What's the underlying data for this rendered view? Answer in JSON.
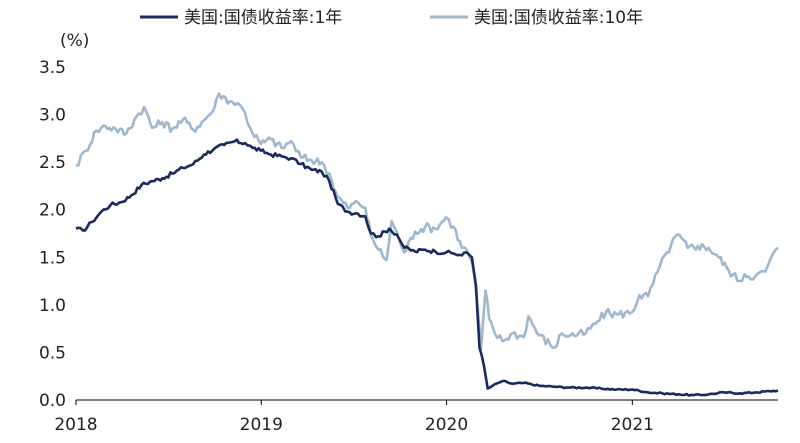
{
  "chart_data": {
    "type": "line",
    "unit_label": "(%)",
    "ylim": [
      0,
      3.5
    ],
    "yticks": [
      "3.5",
      "3.0",
      "2.5",
      "2.0",
      "1.5",
      "1.0",
      "0.5",
      "0.0"
    ],
    "xlim": [
      "2018-01-01",
      "2021-10-15"
    ],
    "xticks": [
      "2018",
      "2019",
      "2020",
      "2021"
    ],
    "grid": false,
    "legend_position": "top",
    "series": [
      {
        "name": "美国:国债收益率:1年",
        "color": "#1b2a5e",
        "points": [
          [
            "2018-01-01",
            1.8
          ],
          [
            "2018-01-15",
            1.78
          ],
          [
            "2018-02-01",
            1.87
          ],
          [
            "2018-02-20",
            1.98
          ],
          [
            "2018-03-10",
            2.05
          ],
          [
            "2018-03-31",
            2.08
          ],
          [
            "2018-04-20",
            2.15
          ],
          [
            "2018-05-10",
            2.26
          ],
          [
            "2018-05-31",
            2.3
          ],
          [
            "2018-06-20",
            2.33
          ],
          [
            "2018-07-10",
            2.38
          ],
          [
            "2018-07-31",
            2.44
          ],
          [
            "2018-08-20",
            2.48
          ],
          [
            "2018-09-10",
            2.58
          ],
          [
            "2018-09-30",
            2.64
          ],
          [
            "2018-10-20",
            2.68
          ],
          [
            "2018-11-10",
            2.72
          ],
          [
            "2018-11-30",
            2.7
          ],
          [
            "2018-12-15",
            2.65
          ],
          [
            "2018-12-31",
            2.62
          ],
          [
            "2019-01-20",
            2.58
          ],
          [
            "2019-02-10",
            2.56
          ],
          [
            "2019-03-01",
            2.54
          ],
          [
            "2019-03-20",
            2.48
          ],
          [
            "2019-04-10",
            2.42
          ],
          [
            "2019-04-30",
            2.4
          ],
          [
            "2019-05-15",
            2.3
          ],
          [
            "2019-06-01",
            2.06
          ],
          [
            "2019-06-20",
            1.98
          ],
          [
            "2019-07-10",
            1.96
          ],
          [
            "2019-07-25",
            1.93
          ],
          [
            "2019-08-05",
            1.75
          ],
          [
            "2019-08-20",
            1.72
          ],
          [
            "2019-09-10",
            1.8
          ],
          [
            "2019-09-25",
            1.74
          ],
          [
            "2019-10-10",
            1.6
          ],
          [
            "2019-10-31",
            1.56
          ],
          [
            "2019-11-20",
            1.58
          ],
          [
            "2019-12-10",
            1.56
          ],
          [
            "2019-12-31",
            1.55
          ],
          [
            "2020-01-15",
            1.54
          ],
          [
            "2020-01-31",
            1.52
          ],
          [
            "2020-02-10",
            1.55
          ],
          [
            "2020-02-20",
            1.5
          ],
          [
            "2020-02-28",
            1.2
          ],
          [
            "2020-03-06",
            0.55
          ],
          [
            "2020-03-15",
            0.35
          ],
          [
            "2020-03-22",
            0.12
          ],
          [
            "2020-04-01",
            0.15
          ],
          [
            "2020-04-20",
            0.2
          ],
          [
            "2020-05-10",
            0.17
          ],
          [
            "2020-06-01",
            0.18
          ],
          [
            "2020-07-01",
            0.15
          ],
          [
            "2020-08-01",
            0.14
          ],
          [
            "2020-09-01",
            0.13
          ],
          [
            "2020-10-01",
            0.13
          ],
          [
            "2020-11-01",
            0.12
          ],
          [
            "2020-12-01",
            0.11
          ],
          [
            "2021-01-01",
            0.11
          ],
          [
            "2021-02-01",
            0.08
          ],
          [
            "2021-03-01",
            0.07
          ],
          [
            "2021-04-01",
            0.06
          ],
          [
            "2021-05-01",
            0.05
          ],
          [
            "2021-06-01",
            0.06
          ],
          [
            "2021-07-01",
            0.08
          ],
          [
            "2021-08-01",
            0.07
          ],
          [
            "2021-09-01",
            0.08
          ],
          [
            "2021-10-15",
            0.1
          ]
        ]
      },
      {
        "name": "美国:国债收益率:10年",
        "color": "#9fb8ce",
        "points": [
          [
            "2018-01-01",
            2.46
          ],
          [
            "2018-01-20",
            2.62
          ],
          [
            "2018-02-10",
            2.83
          ],
          [
            "2018-02-28",
            2.88
          ],
          [
            "2018-03-20",
            2.85
          ],
          [
            "2018-04-10",
            2.8
          ],
          [
            "2018-04-30",
            2.98
          ],
          [
            "2018-05-15",
            3.08
          ],
          [
            "2018-05-31",
            2.86
          ],
          [
            "2018-06-20",
            2.92
          ],
          [
            "2018-07-10",
            2.85
          ],
          [
            "2018-07-31",
            2.95
          ],
          [
            "2018-08-20",
            2.84
          ],
          [
            "2018-09-10",
            2.94
          ],
          [
            "2018-09-30",
            3.06
          ],
          [
            "2018-10-10",
            3.22
          ],
          [
            "2018-10-31",
            3.14
          ],
          [
            "2018-11-15",
            3.12
          ],
          [
            "2018-11-30",
            3.02
          ],
          [
            "2018-12-10",
            2.86
          ],
          [
            "2018-12-31",
            2.69
          ],
          [
            "2019-01-20",
            2.74
          ],
          [
            "2019-02-10",
            2.65
          ],
          [
            "2019-03-01",
            2.72
          ],
          [
            "2019-03-20",
            2.55
          ],
          [
            "2019-04-10",
            2.52
          ],
          [
            "2019-04-30",
            2.5
          ],
          [
            "2019-05-15",
            2.38
          ],
          [
            "2019-05-31",
            2.14
          ],
          [
            "2019-06-20",
            2.02
          ],
          [
            "2019-07-10",
            2.08
          ],
          [
            "2019-07-25",
            2.02
          ],
          [
            "2019-08-05",
            1.73
          ],
          [
            "2019-08-20",
            1.58
          ],
          [
            "2019-09-05",
            1.47
          ],
          [
            "2019-09-15",
            1.88
          ],
          [
            "2019-09-30",
            1.68
          ],
          [
            "2019-10-10",
            1.55
          ],
          [
            "2019-10-31",
            1.77
          ],
          [
            "2019-11-20",
            1.82
          ],
          [
            "2019-12-10",
            1.8
          ],
          [
            "2019-12-31",
            1.92
          ],
          [
            "2020-01-15",
            1.82
          ],
          [
            "2020-01-31",
            1.6
          ],
          [
            "2020-02-10",
            1.58
          ],
          [
            "2020-02-20",
            1.45
          ],
          [
            "2020-02-28",
            1.15
          ],
          [
            "2020-03-06",
            0.75
          ],
          [
            "2020-03-09",
            0.54
          ],
          [
            "2020-03-18",
            1.15
          ],
          [
            "2020-03-25",
            0.85
          ],
          [
            "2020-04-05",
            0.7
          ],
          [
            "2020-04-20",
            0.62
          ],
          [
            "2020-05-10",
            0.7
          ],
          [
            "2020-06-01",
            0.66
          ],
          [
            "2020-06-10",
            0.88
          ],
          [
            "2020-07-01",
            0.68
          ],
          [
            "2020-08-01",
            0.55
          ],
          [
            "2020-08-15",
            0.7
          ],
          [
            "2020-09-01",
            0.68
          ],
          [
            "2020-10-01",
            0.7
          ],
          [
            "2020-10-20",
            0.8
          ],
          [
            "2020-11-10",
            0.92
          ],
          [
            "2020-12-01",
            0.9
          ],
          [
            "2020-12-31",
            0.92
          ],
          [
            "2021-01-15",
            1.1
          ],
          [
            "2021-02-01",
            1.09
          ],
          [
            "2021-02-20",
            1.35
          ],
          [
            "2021-03-10",
            1.55
          ],
          [
            "2021-03-31",
            1.74
          ],
          [
            "2021-04-20",
            1.6
          ],
          [
            "2021-05-10",
            1.62
          ],
          [
            "2021-05-31",
            1.6
          ],
          [
            "2021-06-20",
            1.5
          ],
          [
            "2021-07-10",
            1.36
          ],
          [
            "2021-07-31",
            1.25
          ],
          [
            "2021-08-10",
            1.32
          ],
          [
            "2021-08-31",
            1.3
          ],
          [
            "2021-09-20",
            1.35
          ],
          [
            "2021-09-30",
            1.48
          ],
          [
            "2021-10-15",
            1.6
          ]
        ]
      }
    ]
  }
}
